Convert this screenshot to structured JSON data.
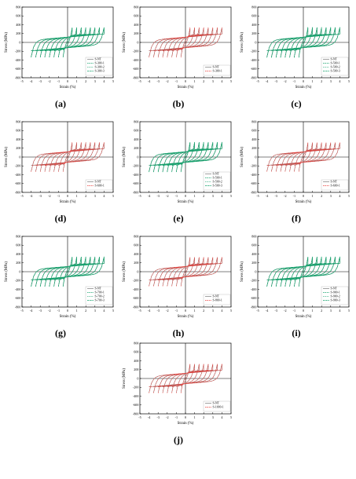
{
  "colors": {
    "S-NT": "#7a7a7a",
    "S-300": "#e8413c",
    "S-500": "#e8413c",
    "S-600": "#e8413c",
    "S-700": "#19a36f",
    "S-800": "#e8413c",
    "S-900": "#e8413c",
    "S-1000": "#e8413c",
    "green": "#19a36f",
    "red": "#e8413c"
  },
  "chart_data": [
    {
      "id": "a",
      "caption": "(a)",
      "type": "line",
      "xlabel": "Strain (%)",
      "ylabel": "Stress (MPa)",
      "xlim": [
        -5,
        5
      ],
      "ylim": [
        -800,
        800
      ],
      "xticks": [
        -5,
        -4,
        -3,
        -2,
        -1,
        0,
        1,
        2,
        3,
        4,
        5
      ],
      "yticks": [
        -800,
        -600,
        -400,
        -200,
        0,
        200,
        400,
        600,
        800
      ],
      "loop_amplitudes": [
        0.5,
        1.0,
        1.5,
        2.0,
        2.5,
        3.0,
        3.5,
        4.0
      ],
      "series": [
        {
          "name": "S-NT",
          "color": "#7a7a7a",
          "yield": 320,
          "peak": 460
        },
        {
          "name": "S-300-1",
          "color": "#19a36f",
          "yield": 330,
          "peak": 470
        },
        {
          "name": "S-300-2",
          "color": "#19a36f",
          "yield": 335,
          "peak": 475
        },
        {
          "name": "S-300-3",
          "color": "#19a36f",
          "yield": 340,
          "peak": 480
        }
      ]
    },
    {
      "id": "b",
      "caption": "(b)",
      "type": "line",
      "xlabel": "Strain (%)",
      "ylabel": "Stress (MPa)",
      "xlim": [
        -5,
        5
      ],
      "ylim": [
        -800,
        800
      ],
      "xticks": [
        -5,
        -4,
        -3,
        -2,
        -1,
        0,
        1,
        2,
        3,
        4,
        5
      ],
      "yticks": [
        -800,
        -600,
        -400,
        -200,
        0,
        200,
        400,
        600,
        800
      ],
      "loop_amplitudes": [
        0.5,
        1.0,
        1.5,
        2.0,
        2.5,
        3.0,
        3.5,
        4.0
      ],
      "series": [
        {
          "name": "S-NT",
          "color": "#7a7a7a",
          "yield": 320,
          "peak": 460
        },
        {
          "name": "S-300-1",
          "color": "#e8413c",
          "yield": 340,
          "peak": 480
        }
      ]
    },
    {
      "id": "c",
      "caption": "(c)",
      "type": "line",
      "xlabel": "Strain (%)",
      "ylabel": "Stress (MPa)",
      "xlim": [
        -5,
        5
      ],
      "ylim": [
        -800,
        800
      ],
      "xticks": [
        -5,
        -4,
        -3,
        -2,
        -1,
        0,
        1,
        2,
        3,
        4,
        5
      ],
      "yticks": [
        -800,
        -600,
        -400,
        -200,
        0,
        200,
        400,
        600,
        800
      ],
      "loop_amplitudes": [
        0.5,
        1.0,
        1.5,
        2.0,
        2.5,
        3.0,
        3.5,
        4.0
      ],
      "series": [
        {
          "name": "S-NT",
          "color": "#7a7a7a",
          "yield": 320,
          "peak": 460
        },
        {
          "name": "S-500-1",
          "color": "#19a36f",
          "yield": 335,
          "peak": 470
        },
        {
          "name": "S-500-2",
          "color": "#19a36f",
          "yield": 340,
          "peak": 475
        },
        {
          "name": "S-500-3",
          "color": "#19a36f",
          "yield": 345,
          "peak": 480
        }
      ]
    },
    {
      "id": "d",
      "caption": "(d)",
      "type": "line",
      "xlabel": "Strain (%)",
      "ylabel": "Stress (MPa)",
      "xlim": [
        -5,
        5
      ],
      "ylim": [
        -800,
        800
      ],
      "xticks": [
        -5,
        -4,
        -3,
        -2,
        -1,
        0,
        1,
        2,
        3,
        4,
        5
      ],
      "yticks": [
        -800,
        -600,
        -400,
        -200,
        0,
        200,
        400,
        600,
        800
      ],
      "loop_amplitudes": [
        0.5,
        1.0,
        1.5,
        2.0,
        2.5,
        3.0,
        3.5,
        4.0
      ],
      "series": [
        {
          "name": "S-NT",
          "color": "#7a7a7a",
          "yield": 320,
          "peak": 460
        },
        {
          "name": "S-600-1",
          "color": "#e8413c",
          "yield": 335,
          "peak": 475
        }
      ]
    },
    {
      "id": "e",
      "caption": "(e)",
      "type": "line",
      "xlabel": "Strain (%)",
      "ylabel": "Stress (MPa)",
      "xlim": [
        -5,
        5
      ],
      "ylim": [
        -800,
        800
      ],
      "xticks": [
        -5,
        -4,
        -3,
        -2,
        -1,
        0,
        1,
        2,
        3,
        4,
        5
      ],
      "yticks": [
        -800,
        -600,
        -400,
        -200,
        0,
        200,
        400,
        600,
        800
      ],
      "loop_amplitudes": [
        0.5,
        1.0,
        1.5,
        2.0,
        2.5,
        3.0,
        3.5,
        4.0
      ],
      "series": [
        {
          "name": "S-NT",
          "color": "#7a7a7a",
          "yield": 320,
          "peak": 460
        },
        {
          "name": "S-500-1",
          "color": "#19a36f",
          "yield": 330,
          "peak": 470
        },
        {
          "name": "S-500-2",
          "color": "#19a36f",
          "yield": 335,
          "peak": 475
        },
        {
          "name": "S-500-3",
          "color": "#19a36f",
          "yield": 340,
          "peak": 480
        }
      ]
    },
    {
      "id": "f",
      "caption": "(f)",
      "type": "line",
      "xlabel": "Strain (%)",
      "ylabel": "Stress (MPa)",
      "xlim": [
        -5,
        5
      ],
      "ylim": [
        -800,
        800
      ],
      "xticks": [
        -5,
        -4,
        -3,
        -2,
        -1,
        0,
        1,
        2,
        3,
        4,
        5
      ],
      "yticks": [
        -800,
        -600,
        -400,
        -200,
        0,
        200,
        400,
        600,
        800
      ],
      "loop_amplitudes": [
        0.5,
        1.0,
        1.5,
        2.0,
        2.5,
        3.0,
        3.5,
        4.0
      ],
      "series": [
        {
          "name": "S-NT",
          "color": "#7a7a7a",
          "yield": 320,
          "peak": 460
        },
        {
          "name": "S-600-1",
          "color": "#e8413c",
          "yield": 330,
          "peak": 470
        }
      ]
    },
    {
      "id": "g",
      "caption": "(g)",
      "type": "line",
      "xlabel": "Strain (%)",
      "ylabel": "Stress (MPa)",
      "xlim": [
        -5,
        5
      ],
      "ylim": [
        -800,
        800
      ],
      "xticks": [
        -5,
        -4,
        -3,
        -2,
        -1,
        0,
        1,
        2,
        3,
        4,
        5
      ],
      "yticks": [
        -800,
        -600,
        -400,
        -200,
        0,
        200,
        400,
        600,
        800
      ],
      "loop_amplitudes": [
        0.5,
        1.0,
        1.5,
        2.0,
        2.5,
        3.0,
        3.5,
        4.0
      ],
      "series": [
        {
          "name": "S-NT",
          "color": "#7a7a7a",
          "yield": 320,
          "peak": 460
        },
        {
          "name": "S-700-1",
          "color": "#19a36f",
          "yield": 330,
          "peak": 465
        },
        {
          "name": "S-700-2",
          "color": "#19a36f",
          "yield": 335,
          "peak": 470
        },
        {
          "name": "S-700-3",
          "color": "#19a36f",
          "yield": 340,
          "peak": 475
        }
      ]
    },
    {
      "id": "h",
      "caption": "(h)",
      "type": "line",
      "xlabel": "Strain (%)",
      "ylabel": "Stress (MPa)",
      "xlim": [
        -5,
        5
      ],
      "ylim": [
        -800,
        800
      ],
      "xticks": [
        -5,
        -4,
        -3,
        -2,
        -1,
        0,
        1,
        2,
        3,
        4,
        5
      ],
      "yticks": [
        -800,
        -600,
        -400,
        -200,
        0,
        200,
        400,
        600,
        800
      ],
      "loop_amplitudes": [
        0.5,
        1.0,
        1.5,
        2.0,
        2.5,
        3.0,
        3.5,
        4.0
      ],
      "series": [
        {
          "name": "S-NT",
          "color": "#7a7a7a",
          "yield": 320,
          "peak": 460
        },
        {
          "name": "S-800-1",
          "color": "#e8413c",
          "yield": 330,
          "peak": 470
        }
      ]
    },
    {
      "id": "i",
      "caption": "(i)",
      "type": "line",
      "xlabel": "Strain (%)",
      "ylabel": "Stress (MPa)",
      "xlim": [
        -5,
        5
      ],
      "ylim": [
        -800,
        800
      ],
      "xticks": [
        -5,
        -4,
        -3,
        -2,
        -1,
        0,
        1,
        2,
        3,
        4,
        5
      ],
      "yticks": [
        -800,
        -600,
        -400,
        -200,
        0,
        200,
        400,
        600,
        800
      ],
      "loop_amplitudes": [
        0.5,
        1.0,
        1.5,
        2.0,
        2.5,
        3.0,
        3.5,
        4.0
      ],
      "series": [
        {
          "name": "S-NT",
          "color": "#7a7a7a",
          "yield": 320,
          "peak": 460
        },
        {
          "name": "S-900-1",
          "color": "#19a36f",
          "yield": 330,
          "peak": 470
        },
        {
          "name": "S-900-2",
          "color": "#19a36f",
          "yield": 335,
          "peak": 475
        },
        {
          "name": "S-900-3",
          "color": "#19a36f",
          "yield": 340,
          "peak": 480
        }
      ]
    },
    {
      "id": "j",
      "caption": "(j)",
      "type": "line",
      "xlabel": "Strain (%)",
      "ylabel": "Stress (MPa)",
      "xlim": [
        -5,
        5
      ],
      "ylim": [
        -800,
        800
      ],
      "xticks": [
        -5,
        -4,
        -3,
        -2,
        -1,
        0,
        1,
        2,
        3,
        4,
        5
      ],
      "yticks": [
        -800,
        -600,
        -400,
        -200,
        0,
        200,
        400,
        600,
        800
      ],
      "loop_amplitudes": [
        0.5,
        1.0,
        1.5,
        2.0,
        2.5,
        3.0,
        3.5,
        4.0
      ],
      "series": [
        {
          "name": "S-NT",
          "color": "#7a7a7a",
          "yield": 320,
          "peak": 460
        },
        {
          "name": "S-1000-1",
          "color": "#e8413c",
          "yield": 330,
          "peak": 470
        }
      ]
    }
  ]
}
